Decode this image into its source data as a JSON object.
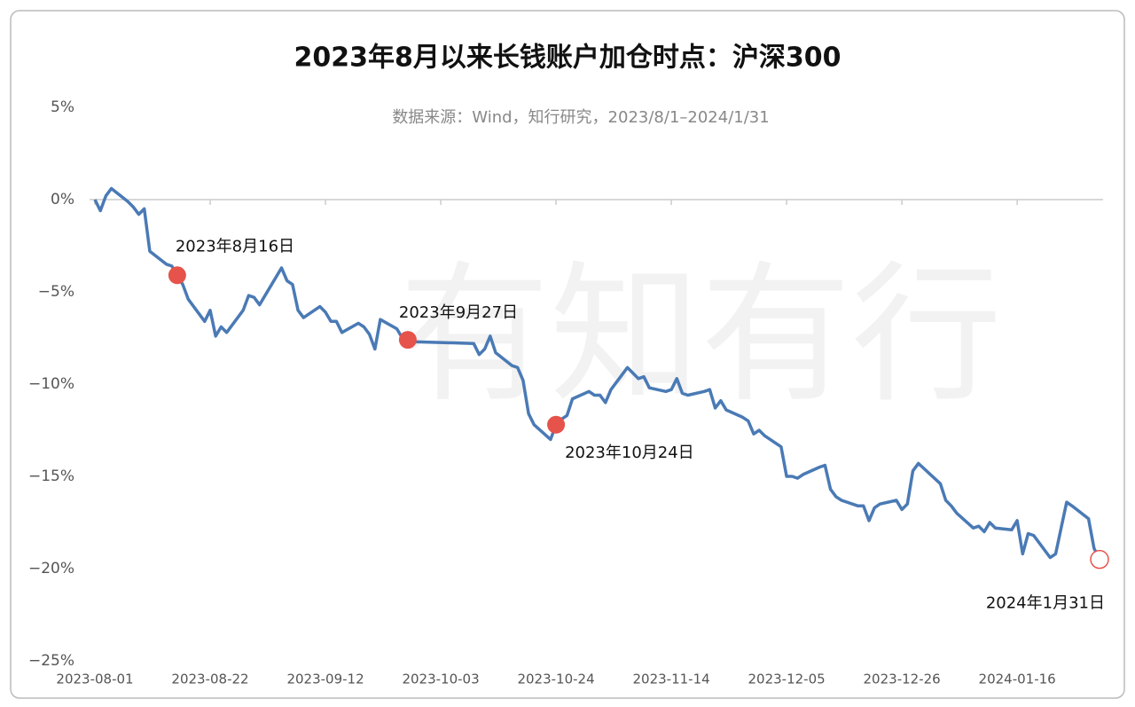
{
  "chart_data": {
    "type": "line",
    "title": "2023年8月以来长钱账户加仓时点：沪深300",
    "subtitle": "数据来源：Wind，知行研究，2023/8/1–2024/1/31",
    "watermark": "有知有行",
    "xlim": [
      "2023-08-01",
      "2024-01-31"
    ],
    "xticks": [
      "2023-08-01",
      "2023-08-22",
      "2023-09-12",
      "2023-10-03",
      "2023-10-24",
      "2023-11-14",
      "2023-12-05",
      "2023-12-26",
      "2024-01-16"
    ],
    "ylim": [
      -25,
      5
    ],
    "yticks": [
      {
        "value": 5,
        "label": "5%"
      },
      {
        "value": 0,
        "label": "0%"
      },
      {
        "value": -5,
        "label": "−5%"
      },
      {
        "value": -10,
        "label": "−10%"
      },
      {
        "value": -15,
        "label": "−15%"
      },
      {
        "value": -20,
        "label": "−20%"
      },
      {
        "value": -25,
        "label": "−25%"
      }
    ],
    "series": [
      {
        "color": "#4a7ab5",
        "x": [
          "2023-08-01",
          "2023-08-02",
          "2023-08-03",
          "2023-08-04",
          "2023-08-07",
          "2023-08-08",
          "2023-08-09",
          "2023-08-10",
          "2023-08-11",
          "2023-08-14",
          "2023-08-15",
          "2023-08-16",
          "2023-08-17",
          "2023-08-18",
          "2023-08-21",
          "2023-08-22",
          "2023-08-23",
          "2023-08-24",
          "2023-08-25",
          "2023-08-28",
          "2023-08-29",
          "2023-08-30",
          "2023-08-31",
          "2023-09-01",
          "2023-09-04",
          "2023-09-05",
          "2023-09-06",
          "2023-09-07",
          "2023-09-08",
          "2023-09-11",
          "2023-09-12",
          "2023-09-13",
          "2023-09-14",
          "2023-09-15",
          "2023-09-18",
          "2023-09-19",
          "2023-09-20",
          "2023-09-21",
          "2023-09-22",
          "2023-09-25",
          "2023-09-26",
          "2023-09-27",
          "2023-09-28",
          "2023-10-09",
          "2023-10-10",
          "2023-10-11",
          "2023-10-12",
          "2023-10-13",
          "2023-10-16",
          "2023-10-17",
          "2023-10-18",
          "2023-10-19",
          "2023-10-20",
          "2023-10-23",
          "2023-10-24",
          "2023-10-25",
          "2023-10-26",
          "2023-10-27",
          "2023-10-30",
          "2023-10-31",
          "2023-11-01",
          "2023-11-02",
          "2023-11-03",
          "2023-11-06",
          "2023-11-07",
          "2023-11-08",
          "2023-11-09",
          "2023-11-10",
          "2023-11-13",
          "2023-11-14",
          "2023-11-15",
          "2023-11-16",
          "2023-11-17",
          "2023-11-20",
          "2023-11-21",
          "2023-11-22",
          "2023-11-23",
          "2023-11-24",
          "2023-11-27",
          "2023-11-28",
          "2023-11-29",
          "2023-11-30",
          "2023-12-01",
          "2023-12-04",
          "2023-12-05",
          "2023-12-06",
          "2023-12-07",
          "2023-12-08",
          "2023-12-11",
          "2023-12-12",
          "2023-12-13",
          "2023-12-14",
          "2023-12-15",
          "2023-12-18",
          "2023-12-19",
          "2023-12-20",
          "2023-12-21",
          "2023-12-22",
          "2023-12-25",
          "2023-12-26",
          "2023-12-27",
          "2023-12-28",
          "2023-12-29",
          "2024-01-02",
          "2024-01-03",
          "2024-01-04",
          "2024-01-05",
          "2024-01-08",
          "2024-01-09",
          "2024-01-10",
          "2024-01-11",
          "2024-01-12",
          "2024-01-15",
          "2024-01-16",
          "2024-01-17",
          "2024-01-18",
          "2024-01-19",
          "2024-01-22",
          "2024-01-23",
          "2024-01-24",
          "2024-01-25",
          "2024-01-26",
          "2024-01-29",
          "2024-01-30",
          "2024-01-31"
        ],
        "values": [
          0,
          -0.6,
          0.2,
          0.6,
          -0.1,
          -0.4,
          -0.8,
          -0.5,
          -2.8,
          -3.5,
          -3.6,
          -4.1,
          -4.6,
          -5.4,
          -6.6,
          -6.0,
          -7.4,
          -6.9,
          -7.2,
          -6.0,
          -5.2,
          -5.3,
          -5.7,
          -5.2,
          -3.7,
          -4.4,
          -4.6,
          -6.0,
          -6.4,
          -5.8,
          -6.1,
          -6.6,
          -6.6,
          -7.2,
          -6.7,
          -6.9,
          -7.3,
          -8.1,
          -6.5,
          -7.0,
          -7.5,
          -7.6,
          -7.7,
          -7.8,
          -8.4,
          -8.1,
          -7.4,
          -8.3,
          -9.0,
          -9.1,
          -9.8,
          -11.6,
          -12.2,
          -13.0,
          -12.2,
          -11.9,
          -11.7,
          -10.8,
          -10.4,
          -10.6,
          -10.6,
          -11.0,
          -10.3,
          -9.1,
          -9.4,
          -9.7,
          -9.6,
          -10.2,
          -10.4,
          -10.3,
          -9.7,
          -10.5,
          -10.6,
          -10.4,
          -10.3,
          -11.3,
          -10.9,
          -11.4,
          -11.8,
          -12.0,
          -12.7,
          -12.5,
          -12.8,
          -13.4,
          -15.0,
          -15.0,
          -15.1,
          -14.9,
          -14.5,
          -14.4,
          -15.7,
          -16.1,
          -16.3,
          -16.6,
          -16.6,
          -17.4,
          -16.7,
          -16.5,
          -16.3,
          -16.8,
          -16.5,
          -14.7,
          -14.3,
          -15.4,
          -16.3,
          -16.6,
          -17.0,
          -17.8,
          -17.7,
          -18.0,
          -17.5,
          -17.8,
          -17.9,
          -17.4,
          -19.2,
          -18.1,
          -18.2,
          -19.4,
          -19.2,
          -17.8,
          -16.4,
          -16.6,
          -17.3,
          -18.9,
          -19.5
        ]
      }
    ],
    "annotations": [
      {
        "text": "2023年8月16日",
        "x": "2023-08-16",
        "y": -4.1,
        "color": "#e5534b",
        "filled": true
      },
      {
        "text": "2023年9月27日",
        "x": "2023-09-27",
        "y": -7.6,
        "color": "#e5534b",
        "filled": true
      },
      {
        "text": "2023年10月24日",
        "x": "2023-10-24",
        "y": -12.2,
        "color": "#e5534b",
        "filled": true
      },
      {
        "text": "2024年1月31日",
        "x": "2024-01-31",
        "y": -19.5,
        "color": "#e5534b",
        "filled": false
      }
    ]
  }
}
